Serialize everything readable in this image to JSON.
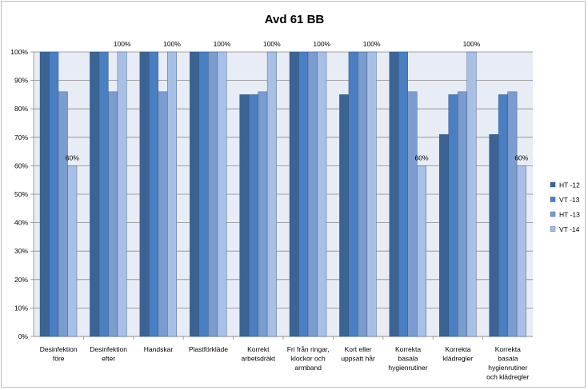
{
  "chart_data": {
    "type": "bar",
    "title": "Avd 61 BB",
    "xlabel": "",
    "ylabel": "",
    "ylim": [
      0,
      100
    ],
    "y_ticks": [
      "0%",
      "10%",
      "20%",
      "30%",
      "40%",
      "50%",
      "60%",
      "70%",
      "80%",
      "90%",
      "100%"
    ],
    "grid": true,
    "legend_position": "right",
    "categories": [
      [
        "Desinfektion",
        "före"
      ],
      [
        "Desinfektion",
        "efter"
      ],
      [
        "Handskar"
      ],
      [
        "Plastförkläde"
      ],
      [
        "Korrekt",
        "arbetsdräkt"
      ],
      [
        "Fri från ringar,",
        "klockor och",
        "armband"
      ],
      [
        "Kort eller",
        "uppsatt hår"
      ],
      [
        "Korrekta",
        "basala",
        "hygienrutiner"
      ],
      [
        "Korrekta",
        "klädregler"
      ],
      [
        "Korrekta",
        "basala",
        "hygienrutiner",
        "och klädregler"
      ]
    ],
    "series": [
      {
        "name": "HT -12",
        "color": "#3b6495",
        "values": [
          100,
          100,
          100,
          100,
          85,
          100,
          85,
          100,
          71,
          71
        ]
      },
      {
        "name": "VT -13",
        "color": "#4a7fc1",
        "values": [
          100,
          100,
          100,
          100,
          85,
          100,
          100,
          100,
          85,
          85
        ]
      },
      {
        "name": "HT -13",
        "color": "#7b9ccf",
        "values": [
          86,
          86,
          86,
          100,
          86,
          100,
          100,
          86,
          86,
          86
        ]
      },
      {
        "name": "VT -14",
        "color": "#a9c0e6",
        "values": [
          60,
          100,
          100,
          100,
          100,
          100,
          100,
          60,
          100,
          60
        ]
      }
    ],
    "data_labels": [
      {
        "category_index": 0,
        "series_index": 3,
        "text": "60%"
      },
      {
        "category_index": 1,
        "series_index": 3,
        "text": "100%"
      },
      {
        "category_index": 2,
        "series_index": 3,
        "text": "100%"
      },
      {
        "category_index": 3,
        "series_index": 3,
        "text": "100%"
      },
      {
        "category_index": 4,
        "series_index": 3,
        "text": "100%"
      },
      {
        "category_index": 5,
        "series_index": 3,
        "text": "100%"
      },
      {
        "category_index": 6,
        "series_index": 3,
        "text": "100%"
      },
      {
        "category_index": 7,
        "series_index": 3,
        "text": "60%"
      },
      {
        "category_index": 8,
        "series_index": 3,
        "text": "100%"
      },
      {
        "category_index": 9,
        "series_index": 3,
        "text": "60%"
      }
    ]
  }
}
